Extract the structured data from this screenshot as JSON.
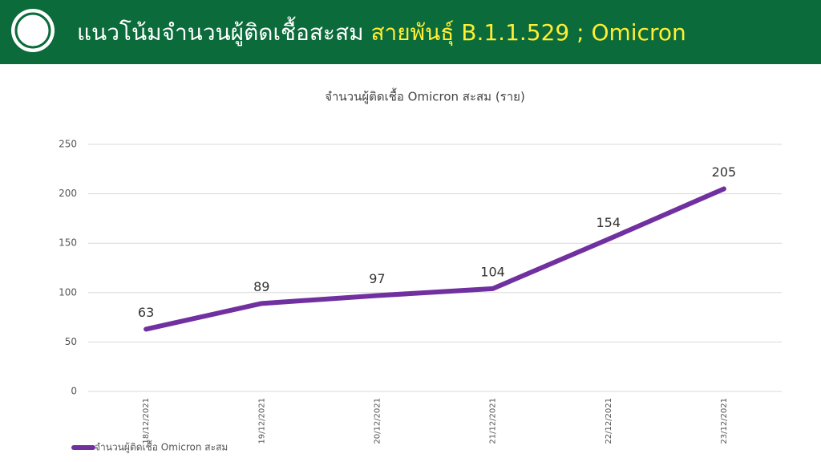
{
  "header": {
    "title_main": "แนวโน้มจำนวนผู้ติดเชื้อสะสม",
    "title_highlight": "สายพันธุ์ B.1.1.529 ; Omicron"
  },
  "chart_data": {
    "type": "line",
    "title": "จำนวนผู้ติดเชื้อ Omicron สะสม (ราย)",
    "categories": [
      "18/12/2021",
      "19/12/2021",
      "20/12/2021",
      "21/12/2021",
      "22/12/2021",
      "23/12/2021"
    ],
    "series": [
      {
        "name": "จำนวนผู้ติดเชื้อ Omicron สะสม",
        "color": "#7030a0",
        "values": [
          63,
          89,
          97,
          104,
          154,
          205
        ]
      }
    ],
    "ylim": [
      0,
      250
    ],
    "yticks": [
      0,
      50,
      100,
      150,
      200,
      250
    ],
    "grid": true,
    "legend": "bottom-left"
  }
}
